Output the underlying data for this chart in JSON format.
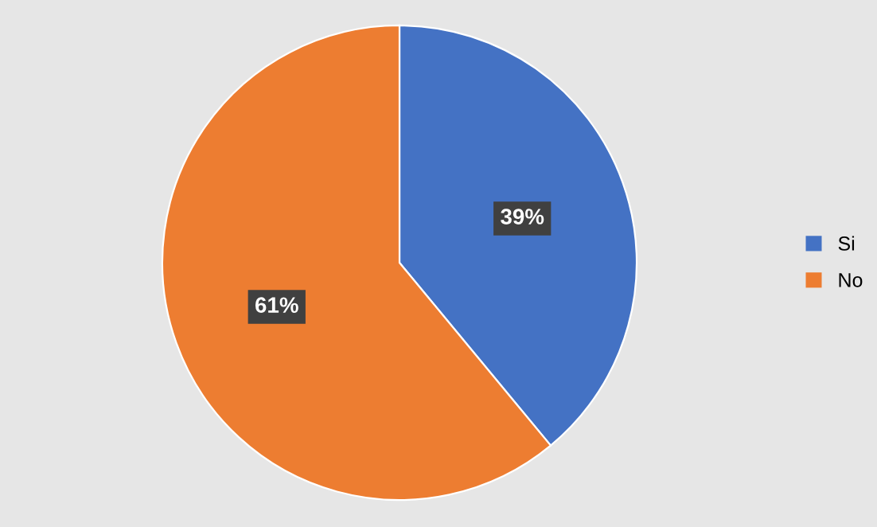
{
  "chart_data": {
    "type": "pie",
    "categories": [
      "Si",
      "No"
    ],
    "values": [
      39,
      61
    ],
    "colors": [
      "#4472c4",
      "#ed7d31"
    ],
    "value_labels": [
      "39%",
      "61%"
    ],
    "legend": "right"
  }
}
